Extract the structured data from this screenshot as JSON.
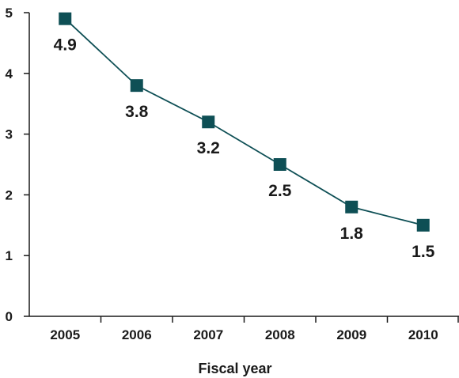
{
  "chart_data": {
    "type": "line",
    "title": "",
    "xlabel": "Fiscal year",
    "ylabel": "",
    "categories": [
      "2005",
      "2006",
      "2007",
      "2008",
      "2009",
      "2010"
    ],
    "series": [
      {
        "values": [
          4.9,
          3.8,
          3.2,
          2.5,
          1.8,
          1.5
        ]
      }
    ],
    "data_labels": [
      "4.9",
      "3.8",
      "3.2",
      "2.5",
      "1.8",
      "1.5"
    ],
    "ylim": [
      0,
      5
    ],
    "yticks": [
      0,
      1,
      2,
      3,
      4,
      5
    ],
    "grid": false,
    "legend": "none",
    "colors": {
      "series": "#0e4f55",
      "axis": "#1a1a1a",
      "text": "#1a1a1a"
    },
    "marker": "square"
  }
}
